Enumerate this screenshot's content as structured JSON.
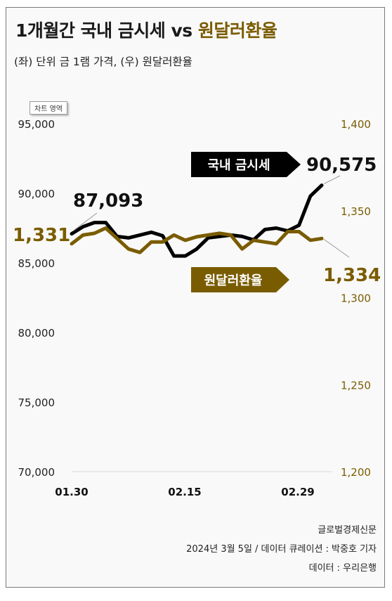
{
  "header": {
    "title_main": "1개월간 국내 금시세 vs ",
    "title_accent": "원달러환율",
    "subtitle": "(좌) 단위 금 1램 가격, (우) 원달러환율",
    "chart_area_tooltip": "차트 영역"
  },
  "colors": {
    "gold": "#7a5c00",
    "black": "#000000",
    "grid": "#d6d6d6"
  },
  "chart_data": {
    "type": "line",
    "x_ticks": [
      "01.30",
      "02.15",
      "02.29"
    ],
    "y_left": {
      "ticks": [
        "95,000",
        "90,000",
        "85,000",
        "80,000",
        "75,000",
        "70,000"
      ],
      "range": [
        70000,
        95000
      ]
    },
    "y_right": {
      "ticks": [
        "1,400",
        "1,350",
        "1,300",
        "1,250",
        "1,200"
      ],
      "range": [
        1200,
        1400
      ]
    },
    "series": [
      {
        "name": "국내 금시세",
        "axis": "left",
        "values": [
          87093,
          87600,
          87900,
          87900,
          86900,
          86800,
          87000,
          87200,
          86950,
          85500,
          85500,
          86000,
          86800,
          86900,
          87000,
          86900,
          86650,
          87400,
          87500,
          87300,
          87700,
          89800,
          90575
        ]
      },
      {
        "name": "원달러환율",
        "axis": "right",
        "values": [
          1331,
          1336,
          1337,
          1340,
          1334,
          1328,
          1326,
          1332,
          1332,
          1336,
          1333,
          1335,
          1336,
          1337,
          1336,
          1328,
          1333,
          1332,
          1331,
          1338,
          1338,
          1333,
          1334
        ]
      }
    ],
    "callouts": {
      "gold_start": "87,093",
      "gold_end": "90,575",
      "fx_start": "1,331",
      "fx_end": "1,334",
      "gold_label": "국내 금시세",
      "fx_label": "원달러환율"
    }
  },
  "footer": {
    "source": "글로벌경제신문",
    "date_curation": "2024년 3월 5일 / 데이터 큐레이션 : 박중호 기자",
    "data_source": "데이터 : 우리은행"
  }
}
